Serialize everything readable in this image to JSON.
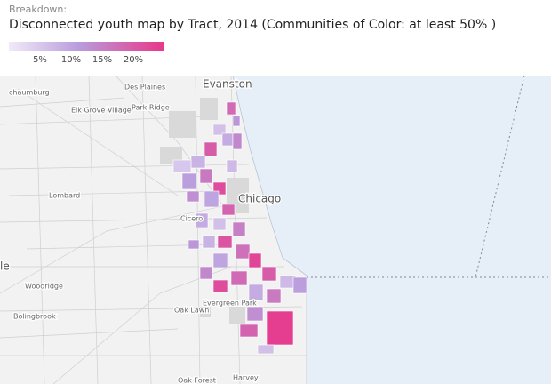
{
  "header": {
    "breakdown": "Breakdown:",
    "title": "Disconnected youth map by Tract, 2014 (Communities of Color: at least 50% )"
  },
  "legend": {
    "range": [
      0,
      25
    ],
    "ticks": [
      {
        "value": 5,
        "label": "5%"
      },
      {
        "value": 10,
        "label": "10%"
      },
      {
        "value": 15,
        "label": "15%"
      },
      {
        "value": 20,
        "label": "20%"
      }
    ]
  },
  "places": [
    "Evanston",
    "Des Plaines",
    "chaumburg",
    "Elk Grove Village",
    "Park Ridge",
    "Chicago",
    "Lombard",
    "Cicero",
    "le",
    "Woodridge",
    "Bolingbrook",
    "Oak Lawn",
    "Evergreen Park",
    "Harvey",
    "Oak Forest"
  ],
  "tracts": [
    18,
    12,
    6,
    9,
    14,
    20,
    8,
    5,
    11,
    16,
    22,
    7,
    10,
    13,
    19,
    6,
    9,
    15,
    21,
    8,
    12,
    17,
    23,
    10,
    14,
    20,
    7,
    11,
    18,
    22,
    9,
    16,
    24,
    13,
    19,
    6
  ]
}
